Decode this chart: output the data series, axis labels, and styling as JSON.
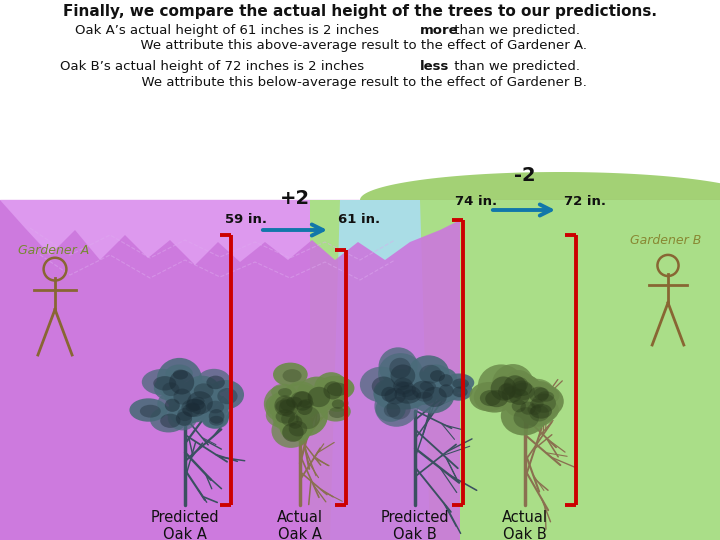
{
  "title": "Finally, we compare the actual height of the trees to our predictions.",
  "line1_pre": "Oak A’s actual height of 61 inches is 2 inches ",
  "line1_bold": "more",
  "line1_post": " than we predicted.",
  "line2": "  We attribute this above-average result to the effect of Gardener A.",
  "line3_pre": "Oak B’s actual height of 72 inches is 2 inches ",
  "line3_bold": "less",
  "line3_post": " than we predicted.",
  "line4": "  We attribute this below-average result to the effect of Gardener B.",
  "gardener_a": "Gardener A",
  "gardener_b": "Gardener B",
  "label_pred_a": "Predicted\nOak A",
  "label_act_a": "Actual\nOak A",
  "label_pred_b": "Predicted\nOak B",
  "label_act_b": "Actual\nOak B",
  "ann_59": "59 in.",
  "ann_61": "61 in.",
  "ann_74": "74 in.",
  "ann_72": "72 in.",
  "ann_plus2": "+2",
  "ann_minus2": "-2",
  "white_bg": "#ffffff",
  "purple_bg": "#dd99ee",
  "green_bg": "#aade88",
  "blue_stripe": "#aaddff",
  "mountain_color": "#cc77dd",
  "hill_color": "#99cc66",
  "bracket_color": "#cc0000",
  "arrow_color": "#1177aa",
  "stick_color": "#886633",
  "text_color": "#111111",
  "gard_a_color": "#778833",
  "gard_b_color": "#888833",
  "tree_blue_foliage": "#4a6b7a",
  "tree_green_foliage": "#6b8a4a",
  "tree_trunk_blue": "#3a5060",
  "tree_trunk_green": "#8a7050"
}
